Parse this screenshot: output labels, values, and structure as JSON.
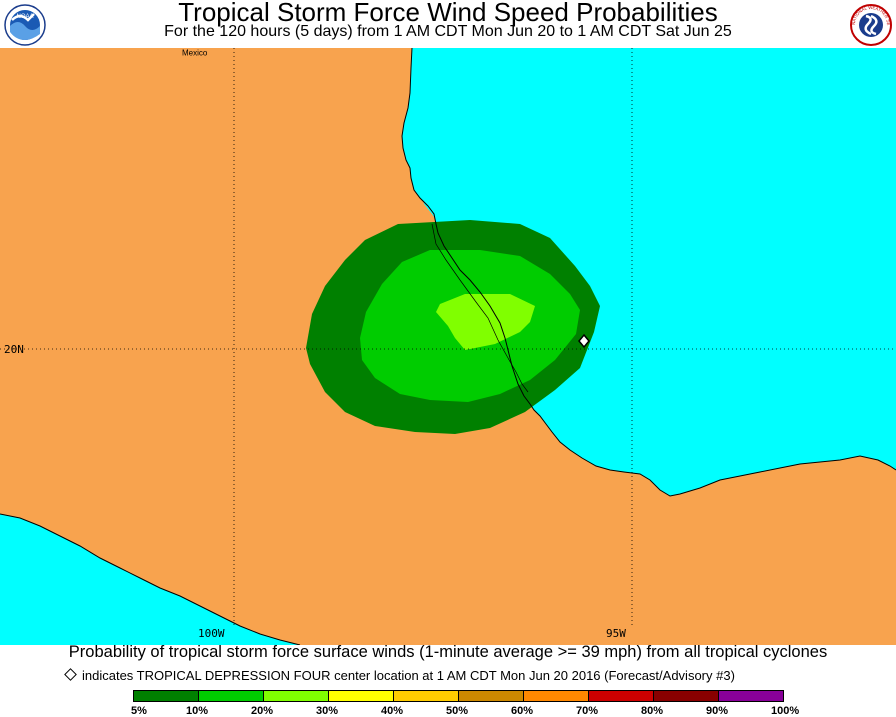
{
  "header": {
    "title": "Tropical Storm Force Wind Speed Probabilities",
    "subtitle": "For the 120 hours (5 days) from 1 AM CDT Mon Jun 20 to 1 AM CDT Sat Jun 25",
    "left_logo_text": "NOAA",
    "right_logo_text": "NATIONAL WEATHER SERVICE"
  },
  "map": {
    "region_label": "Mexico",
    "lat_labels": [
      "20N"
    ],
    "lon_labels": [
      "100W",
      "95W"
    ],
    "colors": {
      "land": "#f8a34e",
      "water": "#00ffff",
      "prob_5_10": "#008000",
      "prob_10_20": "#00cc00",
      "prob_20_30": "#80ff00"
    }
  },
  "footer": {
    "description": "Probability of tropical storm force surface winds (1-minute average >= 39 mph) from all tropical cyclones",
    "center_note": "indicates TROPICAL DEPRESSION FOUR center location at 1 AM CDT Mon Jun 20 2016 (Forecast/Advisory #3)"
  },
  "legend": {
    "bins": [
      {
        "low": "5%",
        "high": "10%",
        "color": "#008000"
      },
      {
        "low": "10%",
        "high": "20%",
        "color": "#00cc00"
      },
      {
        "low": "20%",
        "high": "30%",
        "color": "#80ff00"
      },
      {
        "low": "30%",
        "high": "40%",
        "color": "#ffff00"
      },
      {
        "low": "40%",
        "high": "50%",
        "color": "#ffcc00"
      },
      {
        "low": "50%",
        "high": "60%",
        "color": "#cc8800"
      },
      {
        "low": "60%",
        "high": "70%",
        "color": "#ff8800"
      },
      {
        "low": "70%",
        "high": "80%",
        "color": "#cc0000"
      },
      {
        "low": "80%",
        "high": "90%",
        "color": "#880000"
      },
      {
        "low": "90%",
        "high": "100%",
        "color": "#880099"
      }
    ],
    "labels": [
      "5%",
      "10%",
      "20%",
      "30%",
      "40%",
      "50%",
      "60%",
      "70%",
      "80%",
      "90%",
      "100%"
    ]
  }
}
